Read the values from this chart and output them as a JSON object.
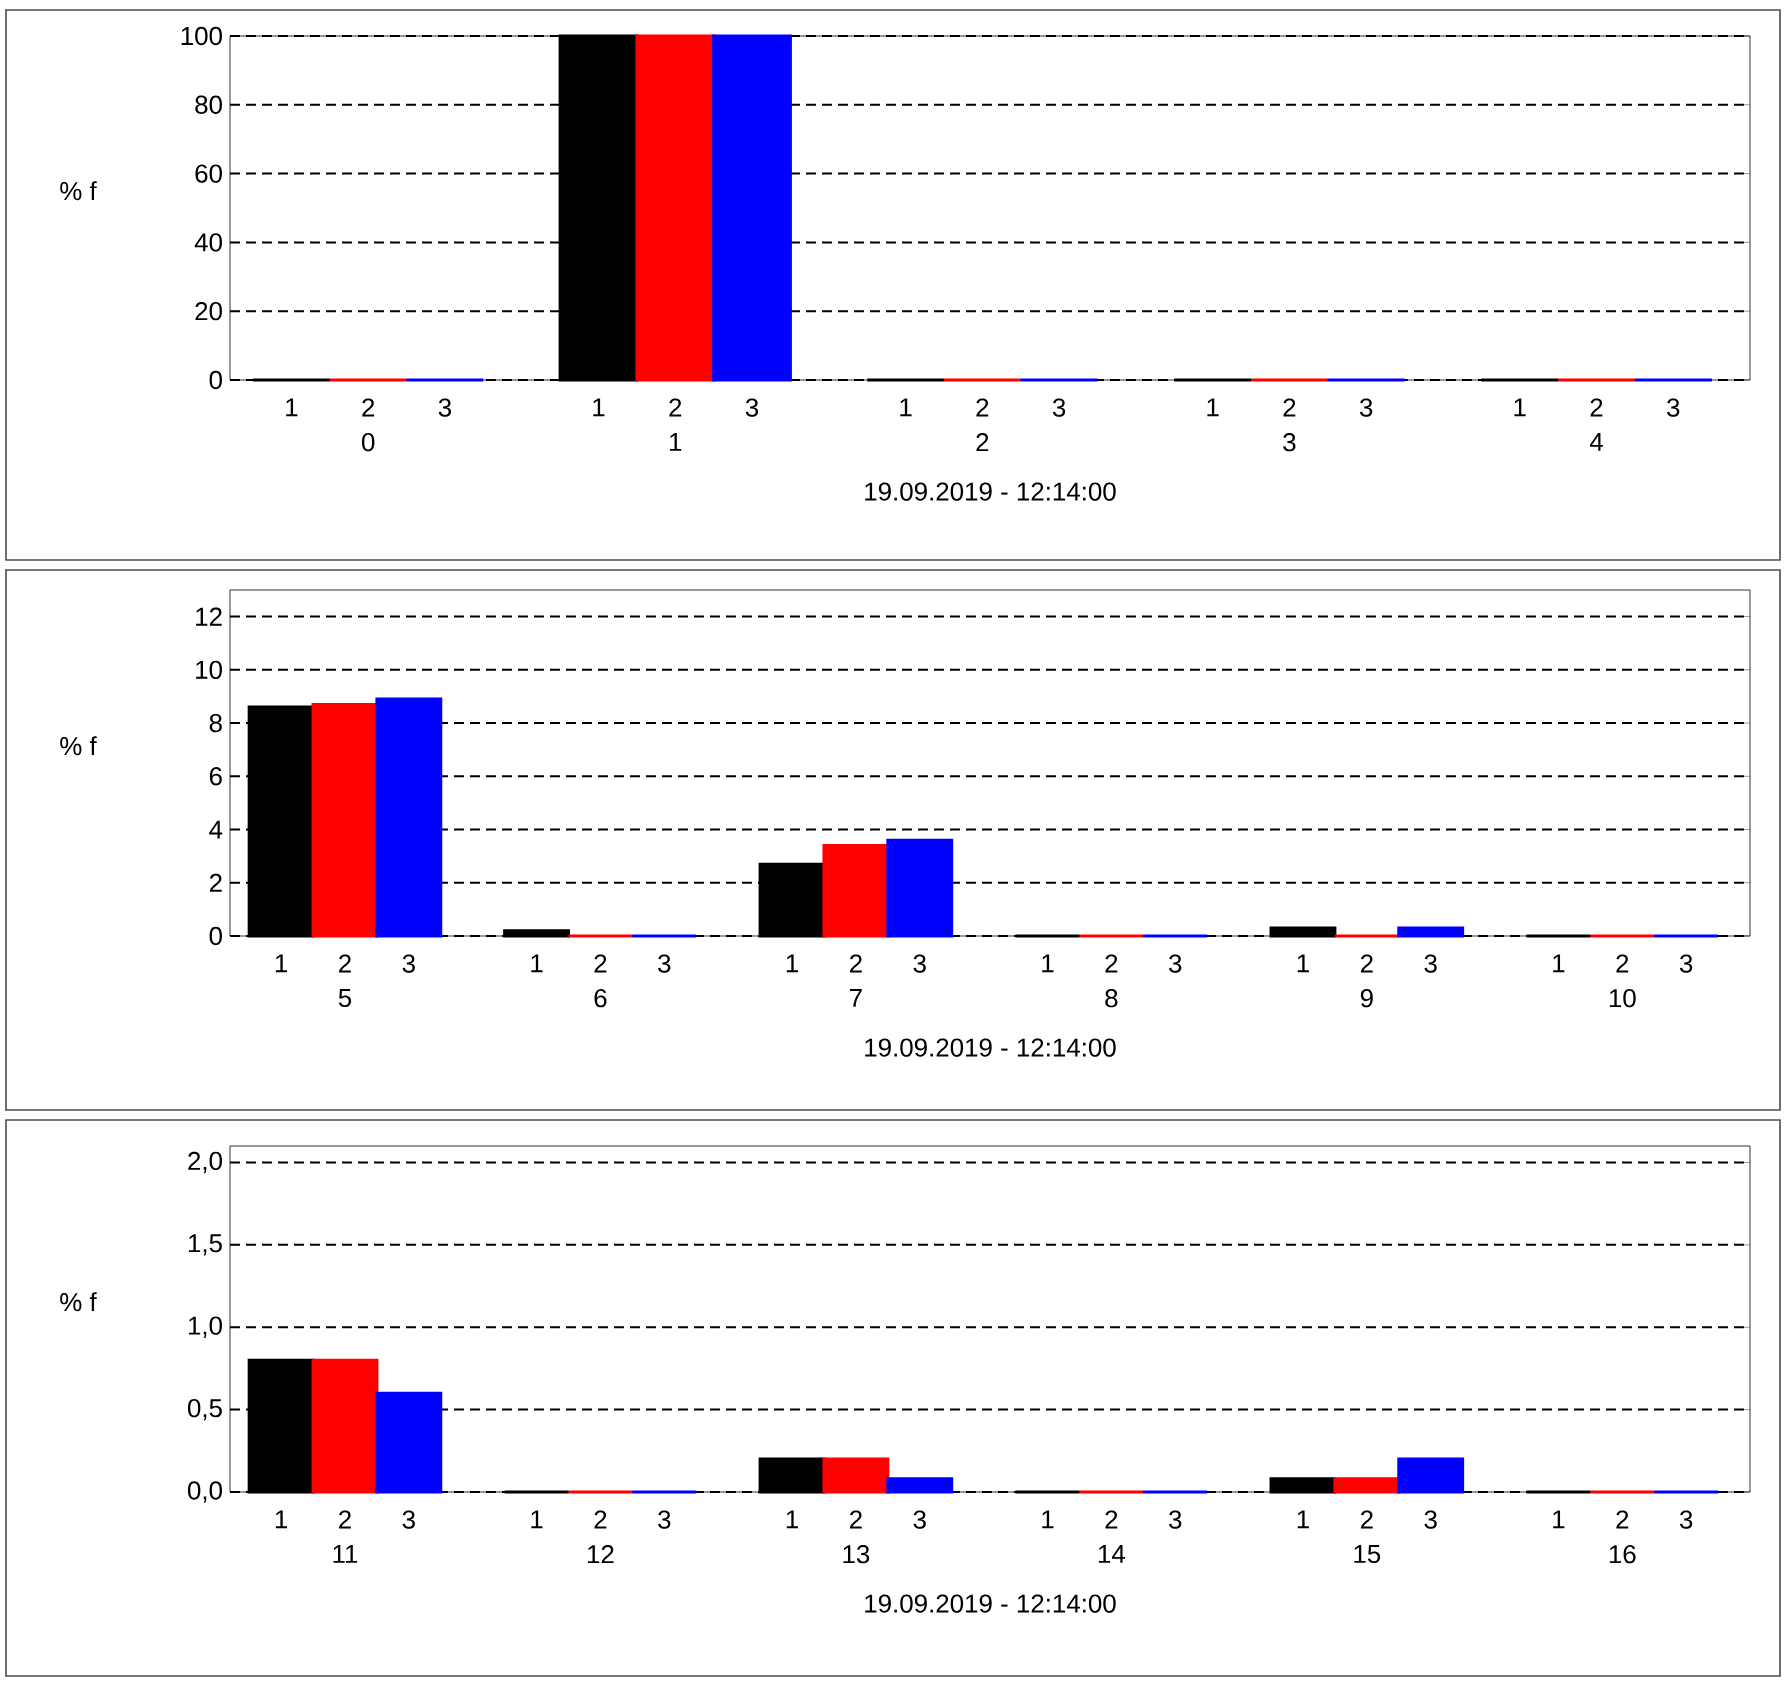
{
  "chart_data": [
    {
      "type": "bar",
      "ylabel": "% f",
      "xlabel": "19.09.2019 - 12:14:00",
      "categories": [
        "0",
        "1",
        "2",
        "3",
        "4"
      ],
      "ylim": [
        0,
        100
      ],
      "yticks": [
        0,
        20,
        40,
        60,
        80,
        100
      ],
      "grid": "y",
      "series": [
        {
          "name": "1",
          "color": "#000000",
          "values": [
            0,
            100,
            0,
            0,
            0
          ]
        },
        {
          "name": "2",
          "color": "#ff0000",
          "values": [
            0,
            100,
            0,
            0,
            0
          ]
        },
        {
          "name": "3",
          "color": "#0000ff",
          "values": [
            0,
            100,
            0,
            0,
            0
          ]
        }
      ]
    },
    {
      "type": "bar",
      "ylabel": "% f",
      "xlabel": "19.09.2019 - 12:14:00",
      "categories": [
        "5",
        "6",
        "7",
        "8",
        "9",
        "10"
      ],
      "ylim": [
        0,
        13
      ],
      "yticks": [
        0,
        2,
        4,
        6,
        8,
        10,
        12
      ],
      "grid": "y",
      "series": [
        {
          "name": "1",
          "color": "#000000",
          "values": [
            8.6,
            0.2,
            2.7,
            0,
            0.3,
            0
          ]
        },
        {
          "name": "2",
          "color": "#ff0000",
          "values": [
            8.7,
            0,
            3.4,
            0,
            0,
            0
          ]
        },
        {
          "name": "3",
          "color": "#0000ff",
          "values": [
            8.9,
            0,
            3.6,
            0,
            0.3,
            0
          ]
        }
      ]
    },
    {
      "type": "bar",
      "ylabel": "% f",
      "xlabel": "19.09.2019 - 12:14:00",
      "categories": [
        "11",
        "12",
        "13",
        "14",
        "15",
        "16"
      ],
      "ylim": [
        0,
        2.1
      ],
      "yticks": [
        {
          "value": 0,
          "label": "0,0"
        },
        {
          "value": 0.5,
          "label": "0,5"
        },
        {
          "value": 1,
          "label": "1,0"
        },
        {
          "value": 1.5,
          "label": "1,5"
        },
        {
          "value": 2,
          "label": "2,0"
        }
      ],
      "grid": "y",
      "series": [
        {
          "name": "1",
          "color": "#000000",
          "values": [
            0.8,
            0,
            0.2,
            0,
            0.08,
            0
          ]
        },
        {
          "name": "2",
          "color": "#ff0000",
          "values": [
            0.8,
            0,
            0.2,
            0,
            0.08,
            0
          ]
        },
        {
          "name": "3",
          "color": "#0000ff",
          "values": [
            0.6,
            0,
            0.08,
            0,
            0.2,
            0
          ]
        }
      ]
    }
  ]
}
